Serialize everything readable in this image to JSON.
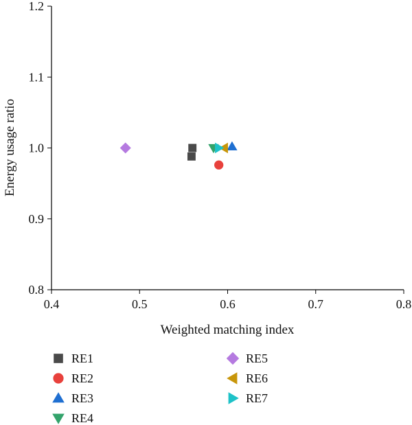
{
  "chart_data": {
    "type": "scatter",
    "title": "",
    "xlabel": "Weighted matching index",
    "ylabel": "Energy usage ratio",
    "xlim": [
      0.4,
      0.8
    ],
    "ylim": [
      0.8,
      1.2
    ],
    "xticks": [
      "0.4",
      "0.5",
      "0.6",
      "0.7",
      "0.8"
    ],
    "yticks": [
      "0.8",
      "0.9",
      "1.0",
      "1.1",
      "1.2"
    ],
    "grid": false,
    "legend_position": "bottom",
    "series": [
      {
        "name": "RE1",
        "marker": "square",
        "color": "#4a4a4a",
        "points": [
          [
            0.56,
            1.0
          ],
          [
            0.559,
            0.988
          ]
        ]
      },
      {
        "name": "RE2",
        "marker": "circle",
        "color": "#e8413c",
        "points": [
          [
            0.59,
            0.976
          ]
        ]
      },
      {
        "name": "RE3",
        "marker": "triangle-up",
        "color": "#1f6fd1",
        "points": [
          [
            0.605,
            1.002
          ]
        ]
      },
      {
        "name": "RE4",
        "marker": "triangle-down",
        "color": "#33a36b",
        "points": [
          [
            0.584,
            1.0
          ]
        ]
      },
      {
        "name": "RE5",
        "marker": "diamond",
        "color": "#b57ae0",
        "points": [
          [
            0.484,
            1.0
          ]
        ]
      },
      {
        "name": "RE6",
        "marker": "triangle-left",
        "color": "#c8960a",
        "points": [
          [
            0.596,
            1.0
          ]
        ]
      },
      {
        "name": "RE7",
        "marker": "triangle-right",
        "color": "#1ec2c8",
        "points": [
          [
            0.59,
            1.0
          ]
        ]
      }
    ]
  }
}
